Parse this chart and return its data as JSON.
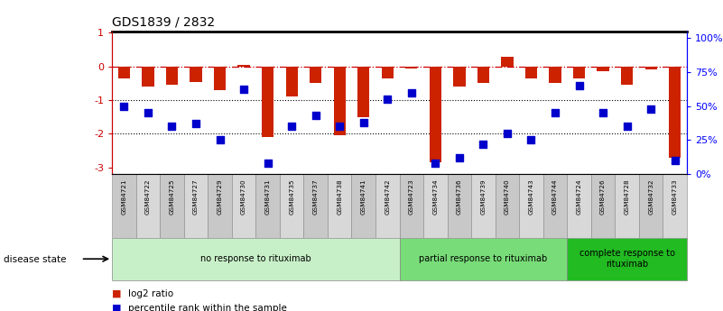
{
  "title": "GDS1839 / 2832",
  "samples": [
    "GSM84721",
    "GSM84722",
    "GSM84725",
    "GSM84727",
    "GSM84729",
    "GSM84730",
    "GSM84731",
    "GSM84735",
    "GSM84737",
    "GSM84738",
    "GSM84741",
    "GSM84742",
    "GSM84723",
    "GSM84734",
    "GSM84736",
    "GSM84739",
    "GSM84740",
    "GSM84743",
    "GSM84744",
    "GSM84724",
    "GSM84726",
    "GSM84728",
    "GSM84732",
    "GSM84733"
  ],
  "log2_ratio": [
    -0.35,
    -0.6,
    -0.55,
    -0.45,
    -0.7,
    0.05,
    -2.1,
    -0.9,
    -0.5,
    -2.05,
    -1.5,
    -0.35,
    -0.05,
    -2.85,
    -0.6,
    -0.5,
    0.3,
    -0.35,
    -0.5,
    -0.35,
    -0.15,
    -0.55,
    -0.1,
    -2.7
  ],
  "percentile_rank": [
    50,
    45,
    35,
    37,
    25,
    62,
    8,
    35,
    43,
    35,
    38,
    55,
    60,
    8,
    12,
    22,
    30,
    25,
    45,
    65,
    45,
    35,
    48,
    10
  ],
  "groups": [
    {
      "label": "no response to rituximab",
      "start": 0,
      "end": 12,
      "color": "#c8f0c8"
    },
    {
      "label": "partial response to rituximab",
      "start": 12,
      "end": 19,
      "color": "#78dc78"
    },
    {
      "label": "complete response to\nrituximab",
      "start": 19,
      "end": 24,
      "color": "#22bb22"
    }
  ],
  "bar_color": "#cc2200",
  "point_color": "#0000cc",
  "bg_color": "#ffffff",
  "ylim_left": [
    -3.2,
    1.05
  ],
  "ylim_right": [
    0,
    105
  ],
  "yticks_left": [
    -3,
    -2,
    -1,
    0,
    1
  ],
  "yticks_right": [
    0,
    25,
    50,
    75,
    100
  ],
  "ytick_labels_right": [
    "0%",
    "25%",
    "50%",
    "75%",
    "100%"
  ],
  "legend_labels": [
    "log2 ratio",
    "percentile rank within the sample"
  ],
  "disease_state_label": "disease state"
}
